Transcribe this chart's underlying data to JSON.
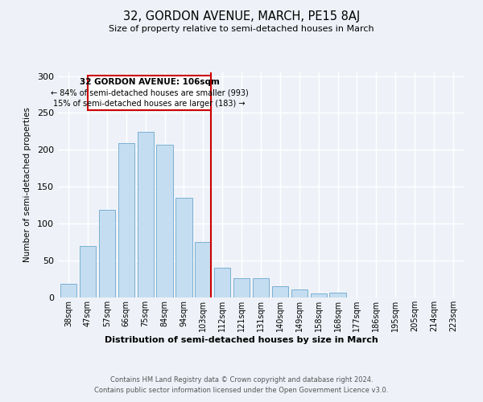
{
  "title": "32, GORDON AVENUE, MARCH, PE15 8AJ",
  "subtitle": "Size of property relative to semi-detached houses in March",
  "xlabel": "Distribution of semi-detached houses by size in March",
  "ylabel": "Number of semi-detached properties",
  "bar_labels": [
    "38sqm",
    "47sqm",
    "57sqm",
    "66sqm",
    "75sqm",
    "84sqm",
    "94sqm",
    "103sqm",
    "112sqm",
    "121sqm",
    "131sqm",
    "140sqm",
    "149sqm",
    "158sqm",
    "168sqm",
    "177sqm",
    "186sqm",
    "195sqm",
    "205sqm",
    "214sqm",
    "223sqm"
  ],
  "bar_values": [
    18,
    70,
    119,
    209,
    224,
    207,
    135,
    75,
    40,
    26,
    26,
    15,
    11,
    5,
    6,
    0,
    0,
    0,
    0,
    0,
    0
  ],
  "bar_color": "#c5ddf0",
  "bar_edge_color": "#7ab0d4",
  "vline_color": "#cc0000",
  "annotation_title": "32 GORDON AVENUE: 106sqm",
  "annotation_line1": "← 84% of semi-detached houses are smaller (993)",
  "annotation_line2": "15% of semi-detached houses are larger (183) →",
  "annotation_box_edge": "#cc0000",
  "ylim": [
    0,
    305
  ],
  "yticks": [
    0,
    50,
    100,
    150,
    200,
    250,
    300
  ],
  "footer1": "Contains HM Land Registry data © Crown copyright and database right 2024.",
  "footer2": "Contains public sector information licensed under the Open Government Licence v3.0.",
  "bg_color": "#eef2f8",
  "plot_bg_color": "#eef2f8",
  "grid_color": "#ffffff"
}
